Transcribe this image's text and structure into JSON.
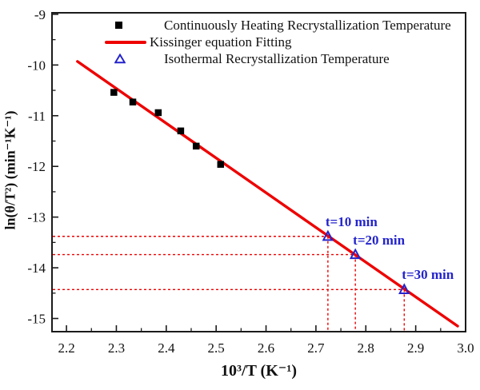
{
  "chart_data": {
    "type": "scatter",
    "title": "",
    "xlabel": "10³/T (K⁻¹)",
    "ylabel": "ln(θ/T²) (min⁻¹K⁻¹)",
    "xlim": [
      2.171,
      3.0
    ],
    "ylim": [
      -15.26,
      -8.97
    ],
    "x_major_ticks": [
      2.2,
      2.3,
      2.4,
      2.5,
      2.6,
      2.7,
      2.8,
      2.9,
      3.0
    ],
    "x_minor_step": 0.05,
    "y_major_ticks": [
      -15,
      -14,
      -13,
      -12,
      -11,
      -10,
      -9
    ],
    "y_minor_step": 0.5,
    "grid": false,
    "legend_position": "top-left-inside",
    "axis_color": "#1b1b1b",
    "series": [
      {
        "name": "Continuously Heating Recrystallization Temperature",
        "type": "scatter",
        "marker": "filled-square",
        "color": "#000000",
        "points": [
          [
            2.295,
            -10.54
          ],
          [
            2.333,
            -10.73
          ],
          [
            2.384,
            -10.94
          ],
          [
            2.429,
            -11.3
          ],
          [
            2.46,
            -11.6
          ],
          [
            2.509,
            -11.96
          ]
        ]
      },
      {
        "name": "Kissinger equation Fitting",
        "type": "line",
        "color": "#ee0000",
        "points": [
          [
            2.222,
            -9.93
          ],
          [
            2.984,
            -15.15
          ]
        ]
      },
      {
        "name": "Isothermal Recrystallization Temperature",
        "type": "scatter",
        "marker": "open-triangle",
        "color": "#2424cc",
        "points": [
          [
            2.724,
            -13.38
          ],
          [
            2.779,
            -13.74
          ],
          [
            2.877,
            -14.43
          ]
        ],
        "point_labels": [
          "t=10 min",
          "t=20 min",
          "t=30 min"
        ],
        "guide_lines": {
          "style": "dashed",
          "color": "#ee0000"
        }
      }
    ]
  }
}
